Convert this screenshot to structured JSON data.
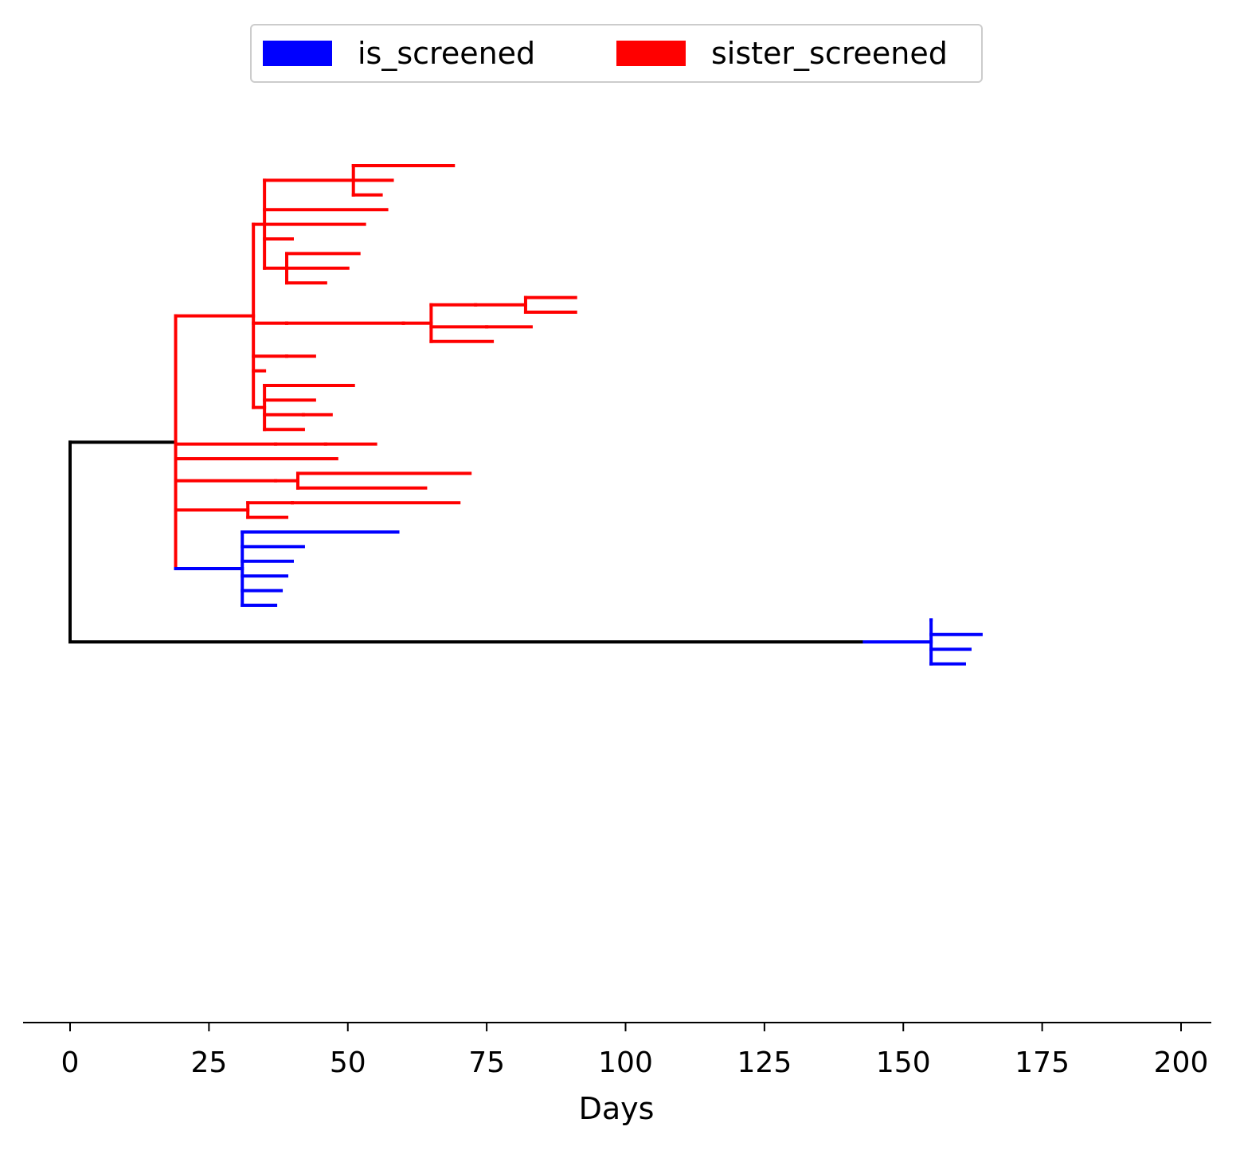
{
  "chart_data": {
    "type": "tree",
    "xlabel": "Days",
    "xlim": [
      -8.3,
      205
    ],
    "xticks": [
      0,
      25,
      50,
      75,
      100,
      125,
      150,
      175,
      200
    ],
    "legend": {
      "placement": "top-center",
      "entries": [
        {
          "name": "is_screened",
          "color": "#0000ff"
        },
        {
          "name": "sister_screened",
          "color": "#ff0000"
        }
      ]
    },
    "tree": {
      "x": 0,
      "color": "#000000",
      "children": [
        {
          "x": 19,
          "color": "#000000",
          "children": [
            {
              "x": 33,
              "color": "#ff0000",
              "children": [
                {
                  "x": 35,
                  "color": "#ff0000",
                  "children": [
                    {
                      "x": 51,
                      "color": "#ff0000",
                      "children": [
                        {
                          "x": 61,
                          "color": "#ff0000",
                          "children": [
                            {
                              "x": 69,
                              "color": "#ff0000"
                            }
                          ]
                        },
                        {
                          "x": 58,
                          "color": "#ff0000"
                        },
                        {
                          "x": 56,
                          "color": "#ff0000"
                        }
                      ]
                    },
                    {
                      "x": 57,
                      "color": "#ff0000"
                    },
                    {
                      "x": 53,
                      "color": "#ff0000"
                    },
                    {
                      "x": 40,
                      "color": "#ff0000"
                    },
                    {
                      "x": 39,
                      "color": "#ff0000",
                      "children": [
                        {
                          "x": 52,
                          "color": "#ff0000"
                        },
                        {
                          "x": 50,
                          "color": "#ff0000"
                        },
                        {
                          "x": 46,
                          "color": "#ff0000"
                        }
                      ]
                    }
                  ]
                },
                {
                  "x": 39,
                  "color": "#ff0000",
                  "children": [
                    {
                      "x": 60,
                      "color": "#ff0000",
                      "children": [
                        {
                          "x": 65,
                          "color": "#ff0000",
                          "children": [
                            {
                              "x": 73,
                              "color": "#ff0000",
                              "children": [
                                {
                                  "x": 82,
                                  "color": "#ff0000",
                                  "children": [
                                    {
                                      "x": 91,
                                      "color": "#ff0000"
                                    },
                                    {
                                      "x": 91,
                                      "color": "#ff0000"
                                    }
                                  ]
                                }
                              ]
                            },
                            {
                              "x": 75,
                              "color": "#ff0000",
                              "children": [
                                {
                                  "x": 83,
                                  "color": "#ff0000"
                                }
                              ]
                            },
                            {
                              "x": 76,
                              "color": "#ff0000"
                            }
                          ]
                        }
                      ]
                    }
                  ]
                },
                {
                  "x": 39,
                  "color": "#ff0000",
                  "children": [
                    {
                      "x": 44,
                      "color": "#ff0000"
                    }
                  ]
                },
                {
                  "x": 35,
                  "color": "#ff0000"
                },
                {
                  "x": 35,
                  "color": "#ff0000",
                  "children": [
                    {
                      "x": 43,
                      "color": "#ff0000",
                      "children": [
                        {
                          "x": 51,
                          "color": "#ff0000"
                        }
                      ]
                    },
                    {
                      "x": 44,
                      "color": "#ff0000"
                    },
                    {
                      "x": 42,
                      "color": "#ff0000",
                      "children": [
                        {
                          "x": 47,
                          "color": "#ff0000"
                        }
                      ]
                    },
                    {
                      "x": 42,
                      "color": "#ff0000"
                    }
                  ]
                }
              ]
            },
            {
              "x": 37,
              "color": "#ff0000",
              "children": [
                {
                  "x": 46,
                  "color": "#ff0000",
                  "children": [
                    {
                      "x": 55,
                      "color": "#ff0000"
                    }
                  ]
                }
              ]
            },
            {
              "x": 48,
              "color": "#ff0000"
            },
            {
              "x": 37,
              "color": "#ff0000",
              "children": [
                {
                  "x": 41,
                  "color": "#ff0000",
                  "children": [
                    {
                      "x": 72,
                      "color": "#ff0000"
                    },
                    {
                      "x": 64,
                      "color": "#ff0000"
                    }
                  ]
                }
              ]
            },
            {
              "x": 32,
              "color": "#ff0000",
              "children": [
                {
                  "x": 40,
                  "color": "#ff0000",
                  "children": [
                    {
                      "x": 70,
                      "color": "#ff0000"
                    }
                  ]
                },
                {
                  "x": 39,
                  "color": "#ff0000"
                }
              ]
            },
            {
              "x": 31,
              "color": "#0000ff",
              "children": [
                {
                  "x": 54,
                  "color": "#0000ff",
                  "children": [
                    {
                      "x": 59,
                      "color": "#0000ff"
                    }
                  ]
                },
                {
                  "x": 42,
                  "color": "#0000ff"
                },
                {
                  "x": 40,
                  "color": "#0000ff"
                },
                {
                  "x": 39,
                  "color": "#0000ff"
                },
                {
                  "x": 38,
                  "color": "#0000ff"
                },
                {
                  "x": 37,
                  "color": "#0000ff"
                }
              ]
            }
          ]
        },
        {
          "x": 143,
          "color": "#000000",
          "children": [
            {
              "x": 155,
              "color": "#0000ff",
              "children": [
                {
                  "x": 155,
                  "color": "#0000ff"
                },
                {
                  "x": 164,
                  "color": "#0000ff"
                },
                {
                  "x": 162,
                  "color": "#0000ff"
                },
                {
                  "x": 161,
                  "color": "#0000ff"
                }
              ]
            }
          ]
        }
      ]
    }
  }
}
